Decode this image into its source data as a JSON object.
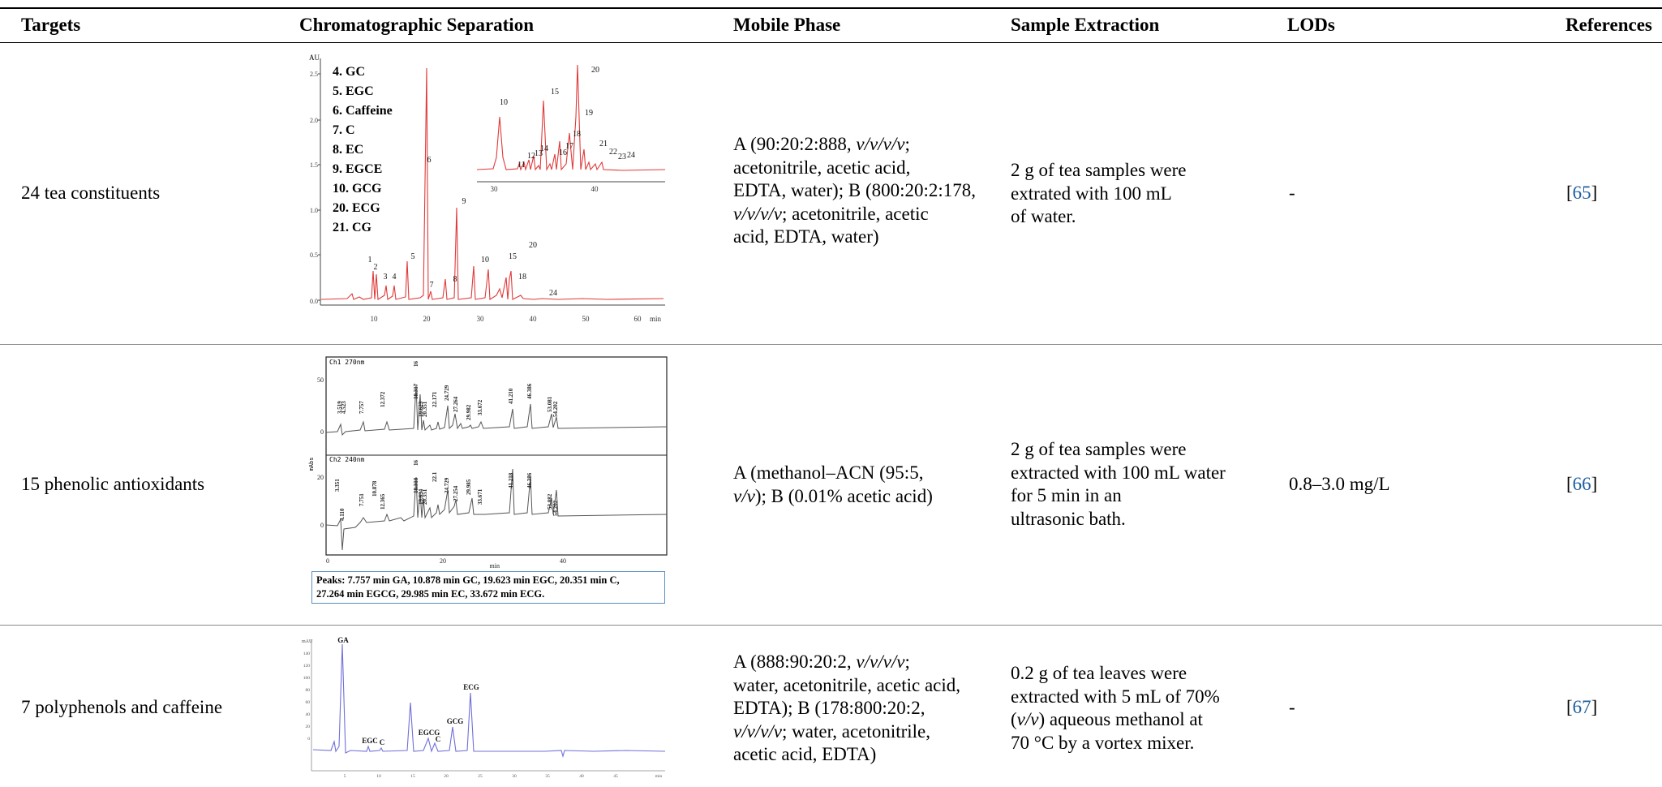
{
  "table": {
    "headers": {
      "targets": "Targets",
      "separation": "Chromatographic Separation",
      "mobile_phase": "Mobile Phase",
      "extraction": "Sample Extraction",
      "lods": "LODs",
      "references": "References"
    },
    "rows": [
      {
        "target": "24 tea constituents",
        "mobile_phase": [
          "A (90:20:2:888, ",
          "v/v/v/v",
          ";",
          "acetonitrile, acetic acid,",
          "EDTA, water); B (800:20:2:178,",
          "v/v/v/v",
          "; acetonitrile, acetic",
          "acid, EDTA, water)"
        ],
        "extraction": [
          "2 g of tea samples were",
          "extrated with 100 mL",
          "of water."
        ],
        "lods": "-",
        "ref_open": "[",
        "ref_num": "65",
        "ref_close": "]"
      },
      {
        "target": "15 phenolic antioxidants",
        "mobile_phase": [
          "A (methanol–ACN (95:5,",
          "v/v",
          "); B (0.01% acetic acid)"
        ],
        "extraction": [
          "2 g of tea samples were",
          "extracted with 100 mL water",
          "for 5 min in an",
          "ultrasonic bath."
        ],
        "lods": "0.8–3.0 mg/L",
        "ref_open": "[",
        "ref_num": "66",
        "ref_close": "]"
      },
      {
        "target": "7 polyphenols and caffeine",
        "mobile_phase": [
          "A (888:90:20:2, ",
          "v/v/v/v",
          ";",
          "water, acetonitrile, acetic acid,",
          "EDTA); B (178:800:20:2,",
          "v/v/v/v",
          "; water, acetonitrile,",
          "acetic acid, EDTA)"
        ],
        "extraction": [
          "0.2 g of tea leaves were",
          "extracted with 5 mL of 70%",
          "(",
          "v/v",
          ") aqueous methanol at",
          "70 °C by a vortex mixer."
        ],
        "lods": "-",
        "ref_open": "[",
        "ref_num": "67",
        "ref_close": "]"
      }
    ]
  },
  "figure1": {
    "au_label": "AU",
    "y_ticks": [
      "2.5",
      "2.0",
      "1.5",
      "1.0",
      "0.5",
      "0.0"
    ],
    "x_ticks": [
      "10",
      "20",
      "30",
      "40",
      "50",
      "60"
    ],
    "x_unit": "min",
    "legend": [
      "4. GC",
      "5. EGC",
      "6. Caffeine",
      "7. C",
      "8. EC",
      "9. EGCE",
      "10. GCG",
      "20. ECG",
      "21. CG"
    ],
    "peak_labels": [
      "1",
      "2",
      "3",
      "4",
      "5",
      "6",
      "7",
      "8",
      "9",
      "10",
      "15",
      "18",
      "20",
      "24"
    ],
    "inset_labels": [
      "10",
      "15",
      "20",
      "11",
      "12",
      "13",
      "14",
      "16",
      "17",
      "18",
      "19",
      "21",
      "22",
      "23",
      "24"
    ],
    "inset_x_ticks": [
      "30",
      "40"
    ]
  },
  "figure2": {
    "ch1_label": "Ch1 270nm",
    "ch2_label": "Ch2 240nm",
    "y_unit": "mAbs",
    "ch1_y_ticks": [
      "50",
      "0"
    ],
    "ch2_y_ticks": [
      "20",
      "0"
    ],
    "x_ticks": [
      "0",
      "20",
      "40"
    ],
    "x_unit": "min",
    "ch1_peaks": [
      "3.519",
      "4.523",
      "7.757",
      "12.372",
      "16",
      "18.317",
      "19.623",
      "20.351",
      "22.171",
      "24.729",
      "27.264",
      "29.982",
      "33.672",
      "41.210",
      "46.386",
      "53.081",
      "54.202"
    ],
    "ch2_peaks": [
      "3.351",
      "4.110",
      "7.751",
      "10.878",
      "12.365",
      "16",
      "18.318",
      "19.634",
      "20.351",
      "22.1",
      "24.729",
      "27.254",
      "29.985",
      "33.671",
      "41.218",
      "46.386",
      "53.082",
      "54.202"
    ],
    "caption_line1": "Peaks: 7.757 min GA, 10.878 min GC, 19.623 min EGC, 20.351 min C,",
    "caption_line2": "27.264 min EGCG, 29.985 min EC, 33.672 min ECG."
  },
  "figure3": {
    "y_unit": "mAU",
    "peak_labels": [
      "GA",
      "EGC",
      "C",
      "EGCG",
      "C",
      "GCG",
      "ECG"
    ],
    "x_ticks": [
      "5",
      "10",
      "15",
      "20",
      "25",
      "30",
      "35",
      "40",
      "45"
    ],
    "x_unit": "min",
    "colors": {
      "trace": "#7070d8"
    }
  },
  "colors": {
    "fig1_trace": "#e03a3a",
    "fig1_axis": "#444444",
    "fig2_trace": "#555555",
    "link": "#1f5fa0"
  }
}
